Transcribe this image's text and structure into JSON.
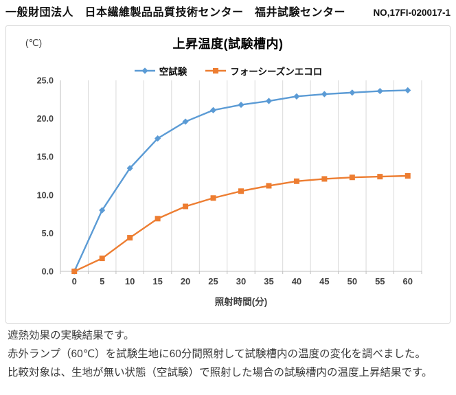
{
  "header": {
    "organization": "一般財団法人　日本繊維製品品質技術センター　福井試験センター",
    "report_no": "NO,17FI-020017-1"
  },
  "chart": {
    "title": "上昇温度(試験槽内)",
    "unit_label": "(℃)"
  },
  "chart_data": {
    "type": "line",
    "title": "上昇温度(試験槽内)",
    "ylabel": "(℃)",
    "xlabel": "照射時間(分)",
    "categories": [
      0,
      5,
      10,
      15,
      20,
      25,
      30,
      35,
      40,
      45,
      50,
      55,
      60
    ],
    "series": [
      {
        "name": "空試験",
        "marker": "diamond",
        "color": "#5B9BD5",
        "values": [
          0.0,
          8.0,
          13.5,
          17.4,
          19.6,
          21.1,
          21.8,
          22.3,
          22.9,
          23.2,
          23.4,
          23.6,
          23.7
        ]
      },
      {
        "name": "フォーシーズンエコロ",
        "marker": "square",
        "color": "#ED7D31",
        "values": [
          0.0,
          1.7,
          4.4,
          6.9,
          8.5,
          9.6,
          10.5,
          11.2,
          11.8,
          12.1,
          12.3,
          12.4,
          12.5
        ]
      }
    ],
    "ylim": [
      0,
      25
    ],
    "ytick_step": 5,
    "ytick_decimals": 1,
    "grid": "vertical",
    "legend_position": "top",
    "gridline_color": "#D9D9D9",
    "axis_color": "#BFBFBF",
    "tick_label_color": "#404040"
  },
  "notes": {
    "line1": "遮熱効果の実験結果です。",
    "line2": "赤外ランプ（60℃）を試験生地に60分間照射して試験槽内の温度の変化を調べました。",
    "line3": "比較対象は、生地が無い状態（空試験）で照射した場合の試験槽内の温度上昇結果です。"
  }
}
